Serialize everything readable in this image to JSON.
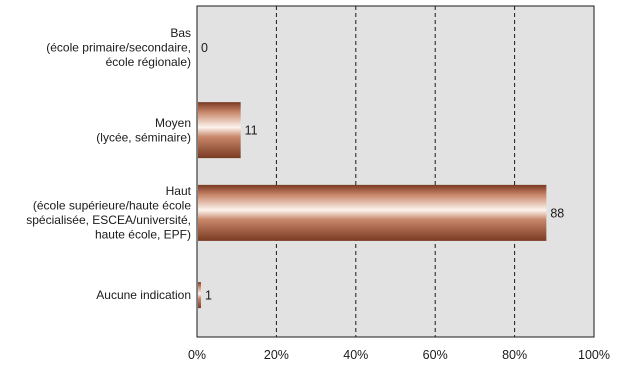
{
  "chart_data": {
    "type": "bar",
    "orientation": "horizontal",
    "categories": [
      [
        "Bas",
        "(école primaire/secondaire,",
        "école régionale)"
      ],
      [
        "Moyen",
        "(lycée, séminaire)"
      ],
      [
        "Haut",
        "(école supérieure/haute école",
        "spécialisée, ESCEA/université,",
        "haute école, EPF)"
      ],
      [
        "Aucune indication"
      ]
    ],
    "values": [
      0,
      11,
      88,
      1
    ],
    "xlim": [
      0,
      100
    ],
    "xticks": [
      0,
      20,
      40,
      60,
      80,
      100
    ],
    "xtick_labels": [
      "0%",
      "20%",
      "40%",
      "60%",
      "80%",
      "100%"
    ],
    "title": "",
    "xlabel": "",
    "ylabel": "",
    "grid": "vertical dashed",
    "legend": "none",
    "colors": {
      "plot_background": "#e2e2e2",
      "bar_dark": "#7a3a22",
      "bar_mid": "#c8876a",
      "bar_light": "#fdf4ee",
      "axis": "#1a1a1a"
    }
  }
}
